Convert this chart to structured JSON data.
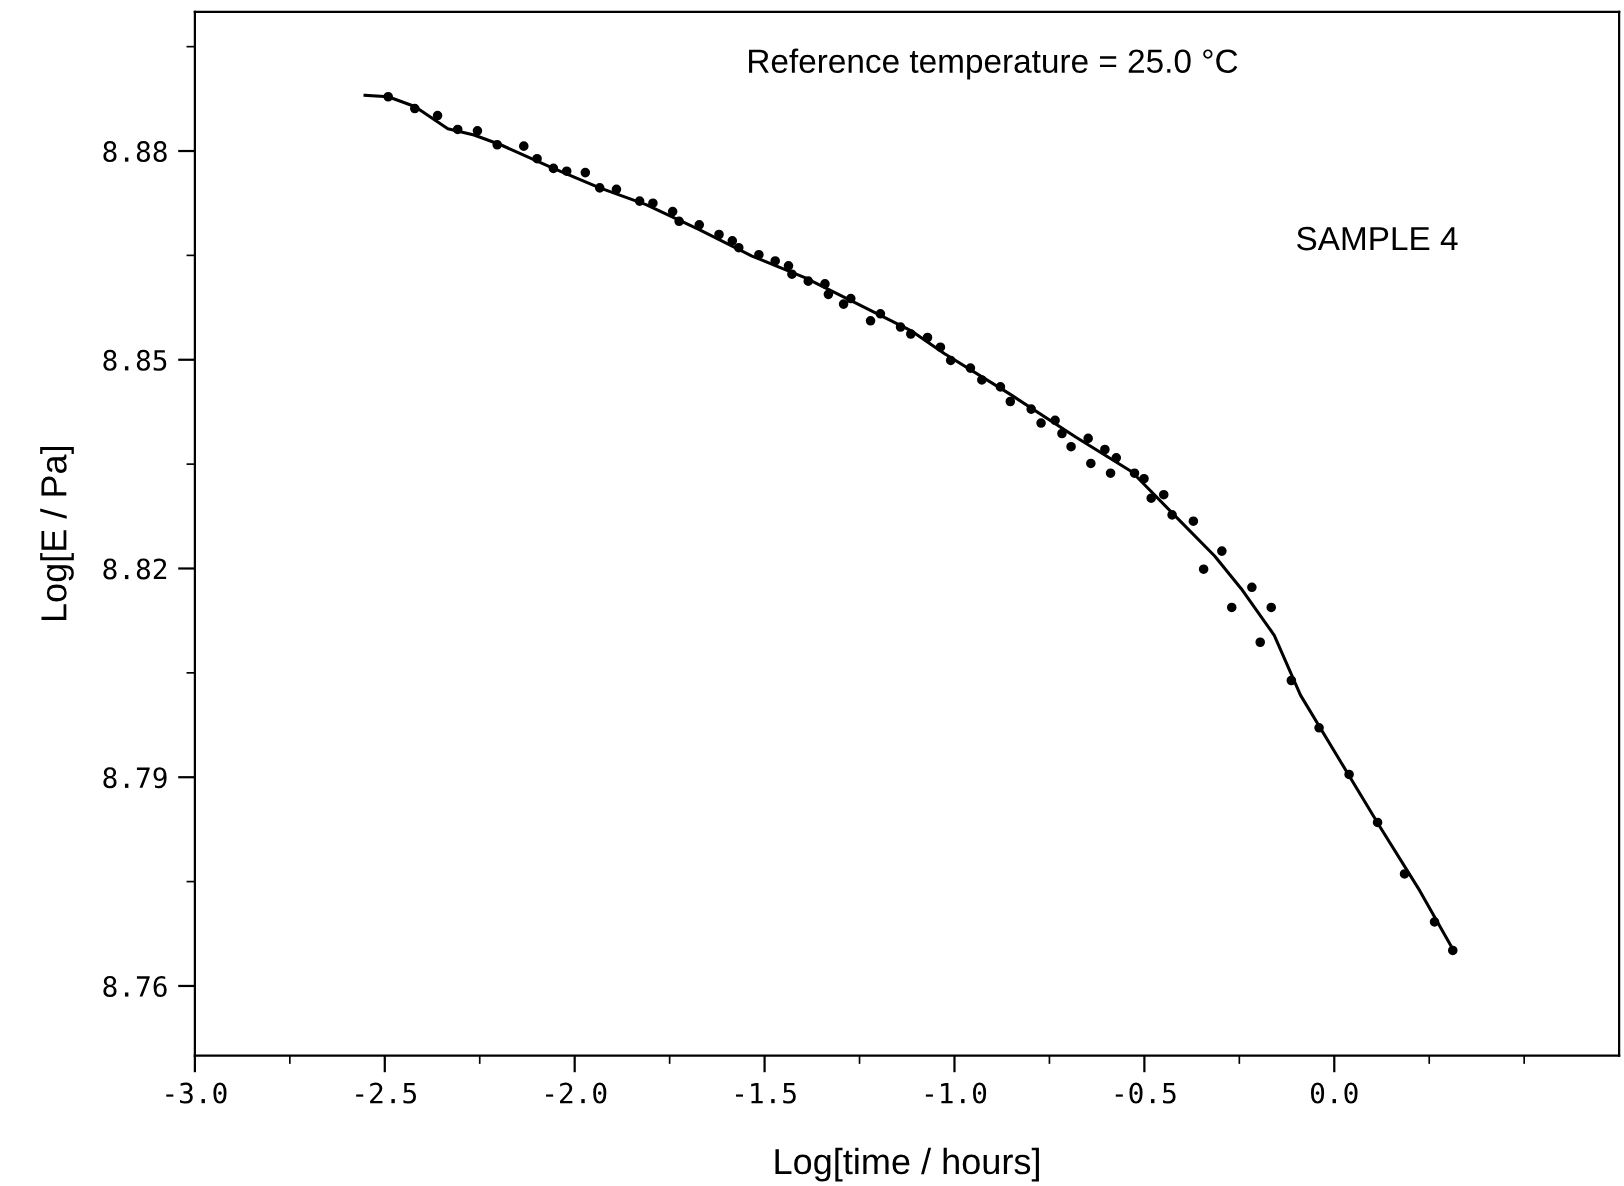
{
  "chart_data": {
    "type": "scatter",
    "xlabel": "Log[time / hours]",
    "ylabel": "Log[E / Pa]",
    "annotations": [
      "Reference temperature = 25.0 °C",
      "SAMPLE 4"
    ],
    "xlim": [
      -3.0,
      0.75
    ],
    "ylim": [
      8.75,
      8.9
    ],
    "xticks": [
      {
        "value": -3.0,
        "label": "-3.0"
      },
      {
        "value": -2.75,
        "label": null
      },
      {
        "value": -2.5,
        "label": "-2.5"
      },
      {
        "value": -2.25,
        "label": null
      },
      {
        "value": -2.0,
        "label": "-2.0"
      },
      {
        "value": -1.75,
        "label": null
      },
      {
        "value": -1.5,
        "label": "-1.5"
      },
      {
        "value": -1.25,
        "label": null
      },
      {
        "value": -1.0,
        "label": "-1.0"
      },
      {
        "value": -0.75,
        "label": null
      },
      {
        "value": -0.5,
        "label": "-0.5"
      },
      {
        "value": -0.25,
        "label": null
      },
      {
        "value": 0.0,
        "label": "0.0"
      },
      {
        "value": 0.25,
        "label": null
      },
      {
        "value": 0.5,
        "label": null
      }
    ],
    "yticks": [
      {
        "value": 8.76,
        "label": "8.76"
      },
      {
        "value": 8.775,
        "label": null
      },
      {
        "value": 8.79,
        "label": "8.79"
      },
      {
        "value": 8.805,
        "label": null
      },
      {
        "value": 8.82,
        "label": "8.82"
      },
      {
        "value": 8.835,
        "label": null
      },
      {
        "value": 8.85,
        "label": "8.85"
      },
      {
        "value": 8.865,
        "label": null
      },
      {
        "value": 8.88,
        "label": "8.88"
      },
      {
        "value": 8.895,
        "label": null
      }
    ],
    "grid": false,
    "legend": false,
    "series": [
      {
        "color": "#000000",
        "marker": "circle",
        "x": [
          -2.491,
          -2.421,
          -2.361,
          -2.308,
          -2.256,
          -2.204,
          -2.134,
          -2.099,
          -2.056,
          -2.021,
          -1.972,
          -1.934,
          -1.89,
          -1.829,
          -1.794,
          -1.742,
          -1.725,
          -1.672,
          -1.62,
          -1.585,
          -1.568,
          -1.515,
          -1.472,
          -1.437,
          -1.428,
          -1.385,
          -1.341,
          -1.332,
          -1.292,
          -1.273,
          -1.221,
          -1.195,
          -1.142,
          -1.115,
          -1.071,
          -1.037,
          -1.01,
          -0.958,
          -0.928,
          -0.879,
          -0.853,
          -0.798,
          -0.772,
          -0.735,
          -0.717,
          -0.693,
          -0.648,
          -0.641,
          -0.604,
          -0.589,
          -0.574,
          -0.526,
          -0.501,
          -0.482,
          -0.449,
          -0.427,
          -0.371,
          -0.344,
          -0.296,
          -0.27,
          -0.217,
          -0.195,
          -0.166,
          -0.113,
          -0.04,
          0.039,
          0.114,
          0.185,
          0.264,
          0.312
        ],
        "values": [
          8.8878,
          8.8861,
          8.8851,
          8.8831,
          8.8829,
          8.8809,
          8.8807,
          8.8789,
          8.8775,
          8.8771,
          8.8769,
          8.8747,
          8.8745,
          8.8728,
          8.8725,
          8.8713,
          8.8699,
          8.8694,
          8.868,
          8.8671,
          8.8661,
          8.8651,
          8.8642,
          8.8635,
          8.8623,
          8.8613,
          8.8609,
          8.8594,
          8.858,
          8.8588,
          8.8556,
          8.8566,
          8.8547,
          8.8537,
          8.8532,
          8.8518,
          8.8499,
          8.8488,
          8.8471,
          8.8461,
          8.844,
          8.8429,
          8.8409,
          8.8413,
          8.8394,
          8.8375,
          8.8387,
          8.8351,
          8.8371,
          8.8337,
          8.8359,
          8.8337,
          8.8329,
          8.8301,
          8.8306,
          8.8277,
          8.8268,
          8.8199,
          8.8225,
          8.8144,
          8.8173,
          8.8094,
          8.8144,
          8.8039,
          8.7971,
          8.7904,
          8.7835,
          8.7761,
          8.7692,
          8.7651
        ]
      },
      {
        "type": "line",
        "color": "#000000",
        "marker": "none",
        "line_style": "solid",
        "x": [
          -2.552,
          -2.491,
          -2.421,
          -2.334,
          -2.265,
          -2.195,
          -2.056,
          -1.934,
          -1.812,
          -1.672,
          -1.533,
          -1.394,
          -1.254,
          -1.115,
          -1.027,
          -0.855,
          -0.681,
          -0.533,
          -0.427,
          -0.315,
          -0.245,
          -0.158,
          -0.089,
          0.016,
          0.121,
          0.225,
          0.314
        ],
        "values": [
          8.888,
          8.8878,
          8.8864,
          8.8832,
          8.8823,
          8.8809,
          8.8775,
          8.8747,
          8.8723,
          8.8687,
          8.8649,
          8.8618,
          8.858,
          8.8542,
          8.8509,
          8.8451,
          8.8389,
          8.8339,
          8.828,
          8.8218,
          8.8171,
          8.8104,
          8.8018,
          8.7923,
          8.7828,
          8.7737,
          8.7651
        ]
      }
    ]
  }
}
